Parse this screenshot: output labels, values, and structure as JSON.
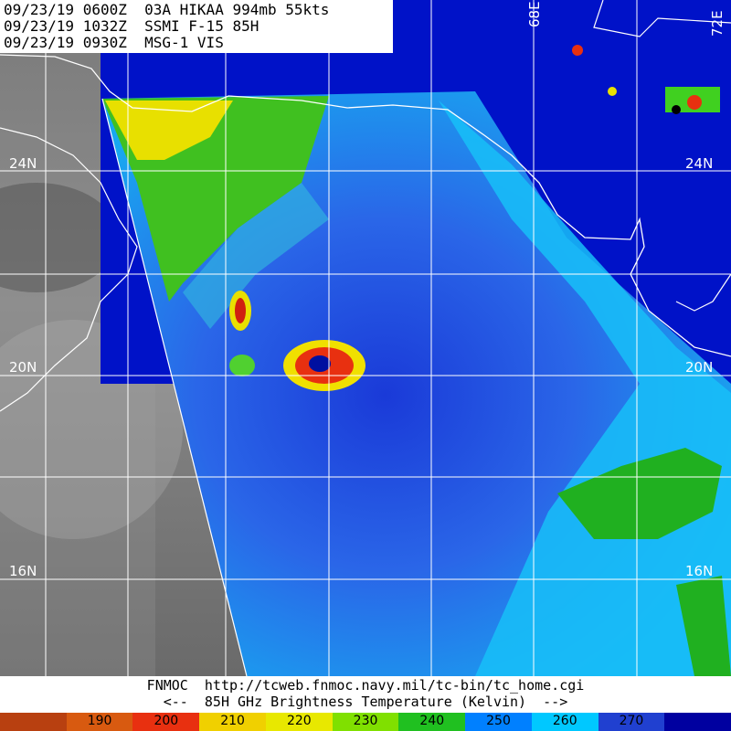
{
  "header": {
    "line1": "09/23/19 0600Z  03A HIKAA 994mb 55kts",
    "line2": "09/23/19 1032Z  SSMI F-15 85H",
    "line3": "09/23/19 0930Z  MSG-1 VIS"
  },
  "lat_labels": {
    "n24_left": "24N",
    "n24_right": "24N",
    "n20_left": "20N",
    "n20_right": "20N",
    "n16_left": "16N",
    "n16_right": "16N"
  },
  "lon_labels": {
    "e68": "68E",
    "e72": "72E"
  },
  "footer": {
    "source": "FNMOC  http://tcweb.fnmoc.navy.mil/tc-bin/tc_home.cgi",
    "legend_title": "<--  85H GHz Brightness Temperature (Kelvin)  -->"
  },
  "colorbar": {
    "labels": [
      "",
      "190",
      "200",
      "210",
      "220",
      "230",
      "240",
      "250",
      "260",
      "270",
      ""
    ],
    "colors": [
      "#b84010",
      "#d85a10",
      "#e83010",
      "#f0d000",
      "#e8e800",
      "#80e000",
      "#20c020",
      "#0080ff",
      "#00c8ff",
      "#2040d0",
      "#0000a0"
    ]
  },
  "colors": {
    "ocean_dark": "#0012c8",
    "land_vis": "#5a5a5a",
    "grid": "#ffffff"
  }
}
